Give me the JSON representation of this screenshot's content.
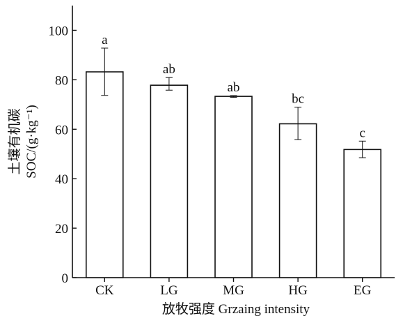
{
  "chart_data": {
    "type": "bar",
    "categories": [
      "CK",
      "LG",
      "MG",
      "HG",
      "EG"
    ],
    "values": [
      83.2,
      77.8,
      73.3,
      62.2,
      51.8
    ],
    "error_low": [
      73.7,
      75.8,
      72.9,
      55.8,
      48.5
    ],
    "error_high": [
      92.8,
      80.9,
      73.6,
      68.9,
      55.2
    ],
    "significance_labels": [
      "a",
      "ab",
      "ab",
      "bc",
      "c"
    ],
    "ylim": [
      0,
      110
    ],
    "yticks": [
      0,
      20,
      40,
      60,
      80,
      100
    ],
    "ylabel_line1": "土壤有机碳",
    "ylabel_line2": "SOC/(g·kg⁻¹)",
    "xlabel": "放牧强度 Grzaing intensity",
    "grid": false,
    "colors": {
      "bar_fill": "#ffffff",
      "bar_stroke": "#111111",
      "axis": "#111111"
    }
  }
}
